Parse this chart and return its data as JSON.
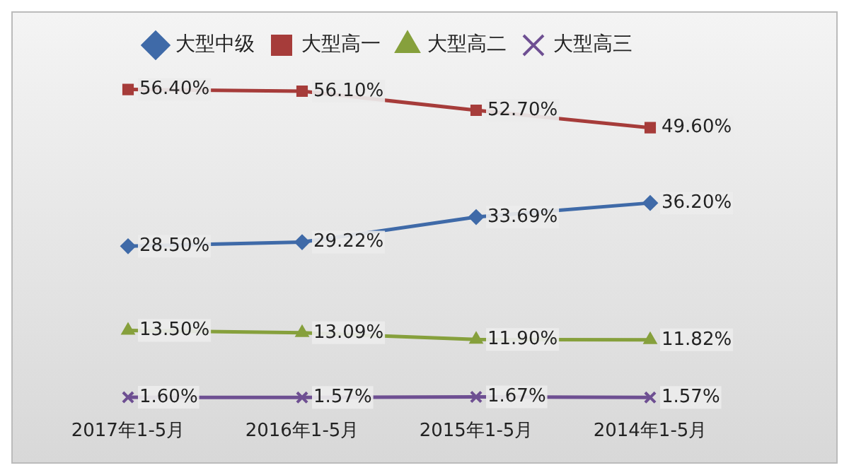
{
  "chart_data": {
    "type": "line",
    "categories": [
      "2017年1-5月",
      "2016年1-5月",
      "2015年1-5月",
      "2014年1-5月"
    ],
    "legend": "top",
    "tick_labels": "x",
    "series": [
      {
        "name": "大型中级",
        "color": "#3f6aa8",
        "marker": "diamond",
        "values": [
          28.5,
          29.22,
          33.69,
          36.2
        ],
        "value_labels": [
          "28.50%",
          "29.22%",
          "33.69%",
          "36.20%"
        ]
      },
      {
        "name": "大型高一",
        "color": "#a63c3a",
        "marker": "square",
        "values": [
          56.4,
          56.1,
          52.7,
          49.6
        ],
        "value_labels": [
          "56.40%",
          "56.10%",
          "52.70%",
          "49.60%"
        ]
      },
      {
        "name": "大型高二",
        "color": "#86a03c",
        "marker": "triangle",
        "values": [
          13.5,
          13.09,
          11.9,
          11.82
        ],
        "value_labels": [
          "13.50%",
          "13.09%",
          "11.90%",
          "11.82%"
        ]
      },
      {
        "name": "大型高三",
        "color": "#6e4f92",
        "marker": "cross",
        "values": [
          1.6,
          1.57,
          1.67,
          1.57
        ],
        "value_labels": [
          "1.60%",
          "1.57%",
          "1.67%",
          "1.57%"
        ]
      }
    ]
  }
}
